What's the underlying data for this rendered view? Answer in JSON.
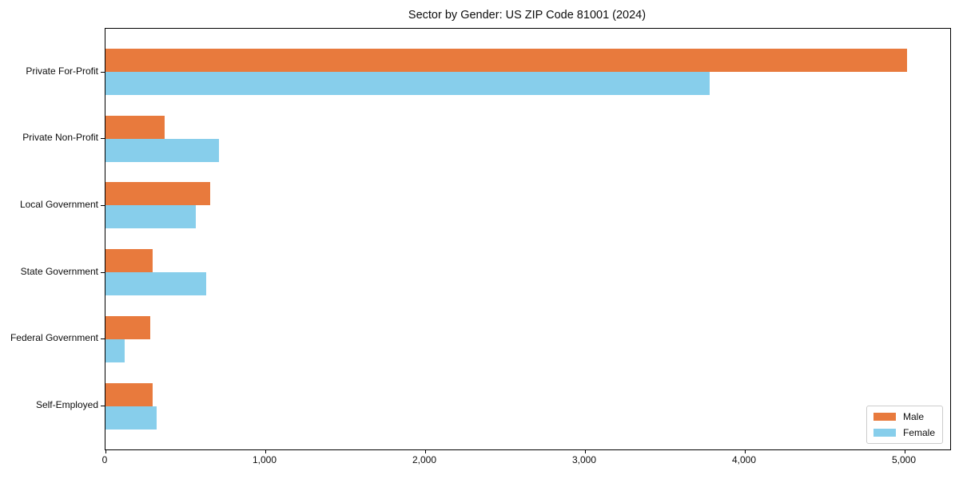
{
  "title": "Sector by Gender: US ZIP Code 81001 (2024)",
  "chart_data": {
    "type": "bar",
    "orientation": "horizontal",
    "title": "Sector by Gender: US ZIP Code 81001 (2024)",
    "categories": [
      "Private For-Profit",
      "Private Non-Profit",
      "Local Government",
      "State Government",
      "Federal Government",
      "Self-Employed"
    ],
    "series": [
      {
        "name": "Male",
        "color": "#E87A3D",
        "values": [
          5015,
          370,
          655,
          295,
          280,
          295
        ]
      },
      {
        "name": "Female",
        "color": "#87CEEB",
        "values": [
          3780,
          710,
          565,
          630,
          120,
          320
        ]
      }
    ],
    "xlim": [
      0,
      5285
    ],
    "xticks": [
      0,
      1000,
      2000,
      3000,
      4000,
      5000
    ],
    "xtick_labels": [
      "0",
      "1,000",
      "2,000",
      "3,000",
      "4,000",
      "5,000"
    ],
    "grid": false,
    "legend": {
      "position": "lower-right",
      "entries": [
        "Male",
        "Female"
      ]
    }
  },
  "colors": {
    "male": "#E87A3D",
    "female": "#87CEEB",
    "axis": "#000000",
    "legend_border": "#cccccc",
    "background": "#ffffff"
  }
}
